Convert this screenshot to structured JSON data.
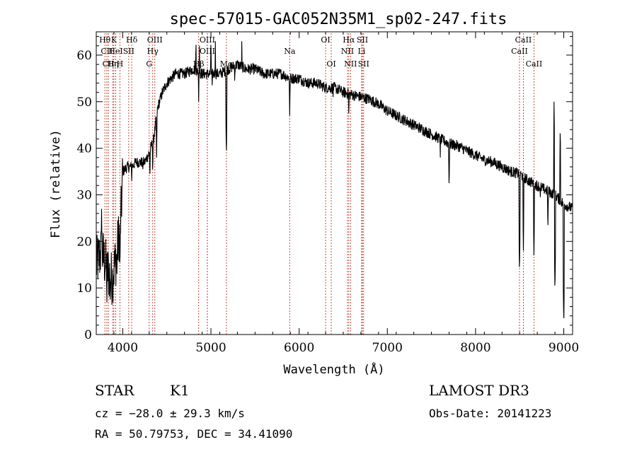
{
  "chart_data": {
    "type": "line",
    "title": "spec-57015-GAC052N35M1_sp02-247.fits",
    "xlabel": "Wavelength (Å)",
    "ylabel": "Flux (relative)",
    "xlim": [
      3700,
      9100
    ],
    "ylim": [
      0,
      65
    ],
    "xticks": [
      4000,
      5000,
      6000,
      7000,
      8000,
      9000
    ],
    "yticks": [
      0,
      10,
      20,
      30,
      40,
      50,
      60
    ],
    "x_minor_step": 200,
    "y_minor_step": 2,
    "continuum": [
      [
        3700,
        15
      ],
      [
        3760,
        18
      ],
      [
        3820,
        14
      ],
      [
        3880,
        12
      ],
      [
        3930,
        17
      ],
      [
        3980,
        25
      ],
      [
        4000,
        35
      ],
      [
        4050,
        36
      ],
      [
        4100,
        36
      ],
      [
        4150,
        37
      ],
      [
        4200,
        37
      ],
      [
        4250,
        37
      ],
      [
        4300,
        39
      ],
      [
        4350,
        42
      ],
      [
        4400,
        49
      ],
      [
        4450,
        52
      ],
      [
        4500,
        54
      ],
      [
        4550,
        55
      ],
      [
        4600,
        56
      ],
      [
        4700,
        56
      ],
      [
        4800,
        57
      ],
      [
        4900,
        56
      ],
      [
        5000,
        56
      ],
      [
        5100,
        56
      ],
      [
        5200,
        57
      ],
      [
        5300,
        58
      ],
      [
        5400,
        57
      ],
      [
        5500,
        57
      ],
      [
        5600,
        56
      ],
      [
        5700,
        56
      ],
      [
        5800,
        56
      ],
      [
        5900,
        55
      ],
      [
        6000,
        55
      ],
      [
        6100,
        54
      ],
      [
        6200,
        54
      ],
      [
        6300,
        53
      ],
      [
        6400,
        53
      ],
      [
        6500,
        52
      ],
      [
        6600,
        51.5
      ],
      [
        6700,
        51
      ],
      [
        6800,
        50.5
      ],
      [
        6900,
        49.5
      ],
      [
        7000,
        48
      ],
      [
        7100,
        47
      ],
      [
        7200,
        46
      ],
      [
        7300,
        45
      ],
      [
        7400,
        44
      ],
      [
        7500,
        43
      ],
      [
        7600,
        42
      ],
      [
        7700,
        41
      ],
      [
        7800,
        40.5
      ],
      [
        7900,
        39.5
      ],
      [
        8000,
        38.5
      ],
      [
        8100,
        37.5
      ],
      [
        8200,
        37
      ],
      [
        8300,
        36
      ],
      [
        8400,
        35
      ],
      [
        8500,
        34.5
      ],
      [
        8600,
        33
      ],
      [
        8700,
        32
      ],
      [
        8800,
        31
      ],
      [
        8900,
        30
      ],
      [
        9000,
        28
      ],
      [
        9100,
        27
      ]
    ],
    "absorption_dips": [
      [
        3820,
        7
      ],
      [
        3860,
        6
      ],
      [
        3890,
        8
      ],
      [
        3934,
        13
      ],
      [
        3968,
        14
      ],
      [
        4102,
        33
      ],
      [
        4227,
        34
      ],
      [
        4308,
        33
      ],
      [
        4340,
        34
      ],
      [
        4384,
        38
      ],
      [
        4861,
        50
      ],
      [
        5015,
        52
      ],
      [
        5175,
        38
      ],
      [
        5270,
        53
      ],
      [
        5893,
        47
      ],
      [
        6122,
        52
      ],
      [
        6385,
        51
      ],
      [
        6563,
        46
      ],
      [
        7600,
        38
      ],
      [
        7700,
        31
      ],
      [
        8498,
        13
      ],
      [
        8542,
        18
      ],
      [
        8662,
        17
      ],
      [
        8735,
        28
      ],
      [
        8820,
        22
      ],
      [
        8900,
        9
      ],
      [
        9000,
        2
      ]
    ],
    "emission_spikes": [
      [
        3760,
        27
      ],
      [
        4830,
        64
      ],
      [
        4870,
        62
      ],
      [
        5000,
        64
      ],
      [
        5050,
        63
      ],
      [
        5350,
        63
      ],
      [
        8890,
        50
      ],
      [
        8960,
        45
      ]
    ],
    "noise_amplitude": 1.2,
    "lines": [
      {
        "x": 3798,
        "label": "Hθ",
        "row": 0
      },
      {
        "x": 3820,
        "label": "CII",
        "row": 1
      },
      {
        "x": 3838,
        "label": "CII",
        "row": 2
      },
      {
        "x": 3889,
        "label": "Hη",
        "row": 2
      },
      {
        "x": 3900,
        "label": "K",
        "row": 0
      },
      {
        "x": 3921,
        "label": "HeI",
        "row": 1
      },
      {
        "x": 3968,
        "label": "H",
        "row": 2
      },
      {
        "x": 4102,
        "label": "Hδ",
        "row": 0
      },
      {
        "x": 4068,
        "label": "SII",
        "row": 1
      },
      {
        "x": 4300,
        "label": "G",
        "row": 2
      },
      {
        "x": 4340,
        "label": "Hγ",
        "row": 1
      },
      {
        "x": 4364,
        "label": "OIII",
        "row": 0
      },
      {
        "x": 4861,
        "label": "Hβ",
        "row": 2
      },
      {
        "x": 4959,
        "label": "OIII",
        "row": 0
      },
      {
        "x": 4959,
        "label": "OIII",
        "row": 1
      },
      {
        "x": 5176,
        "label": "Mg",
        "row": 2
      },
      {
        "x": 5893,
        "label": "Na",
        "row": 1
      },
      {
        "x": 6300,
        "label": "OI",
        "row": 0
      },
      {
        "x": 6364,
        "label": "OI",
        "row": 2
      },
      {
        "x": 6548,
        "label": "NII",
        "row": 1
      },
      {
        "x": 6563,
        "label": "Hα",
        "row": 0
      },
      {
        "x": 6583,
        "label": "NII",
        "row": 2
      },
      {
        "x": 6708,
        "label": "Li",
        "row": 1
      },
      {
        "x": 6717,
        "label": "SII",
        "row": 0
      },
      {
        "x": 6731,
        "label": "SII",
        "row": 2
      },
      {
        "x": 8498,
        "label": "CaII",
        "row": 1
      },
      {
        "x": 8542,
        "label": "CaII",
        "row": 0
      },
      {
        "x": 8662,
        "label": "CaII",
        "row": 2
      }
    ]
  },
  "info": {
    "object_class": "STAR",
    "subclass": "K1",
    "survey": "LAMOST DR3",
    "redshift_line": "cz = −28.0 ± 29.3 km/s",
    "obs_date_line": "Obs-Date: 20141223",
    "coords_line": "RA =  50.79753, DEC =  34.41090"
  },
  "colors": {
    "marker": "#c0392b",
    "spectrum": "#000000",
    "background": "#ffffff"
  }
}
